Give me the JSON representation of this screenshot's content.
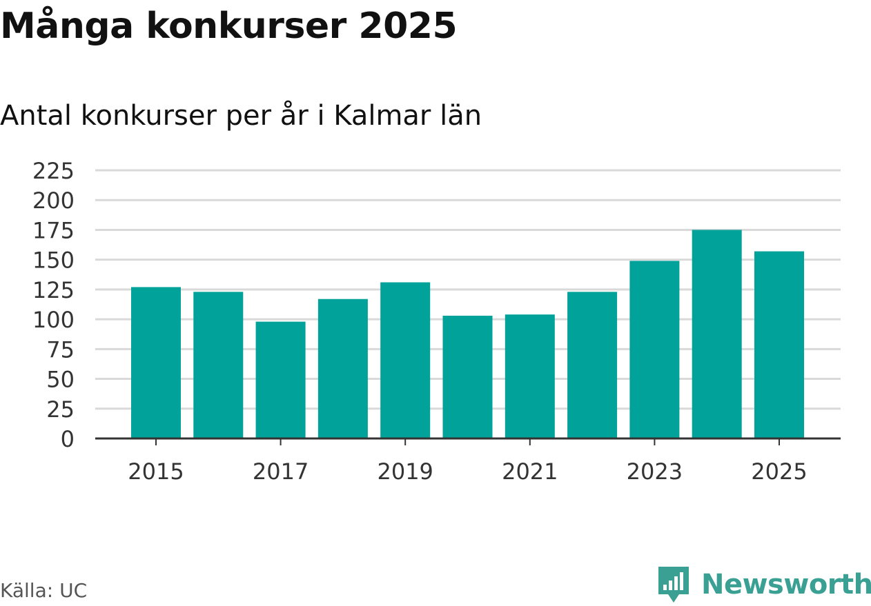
{
  "header": {
    "title": "Många konkurser 2025",
    "subtitle": "Antal konkurser per år i Kalmar län"
  },
  "footer": {
    "source": "Källa: UC",
    "brand": "Newsworthy"
  },
  "colors": {
    "bar": "#00a29a",
    "grid": "#d9d9d9",
    "axis": "#333333",
    "brand": "#3aa094"
  },
  "chart_data": {
    "type": "bar",
    "categories": [
      "2015",
      "2016",
      "2017",
      "2018",
      "2019",
      "2020",
      "2021",
      "2022",
      "2023",
      "2024",
      "2025"
    ],
    "values": [
      127,
      123,
      98,
      117,
      131,
      103,
      104,
      123,
      149,
      175,
      157
    ],
    "x_tick_labels": [
      "2015",
      "2017",
      "2019",
      "2021",
      "2023",
      "2025"
    ],
    "y_ticks": [
      0,
      25,
      50,
      75,
      100,
      125,
      150,
      175,
      200,
      225
    ],
    "ylim": [
      0,
      225
    ],
    "grid": true,
    "legend": "none"
  }
}
